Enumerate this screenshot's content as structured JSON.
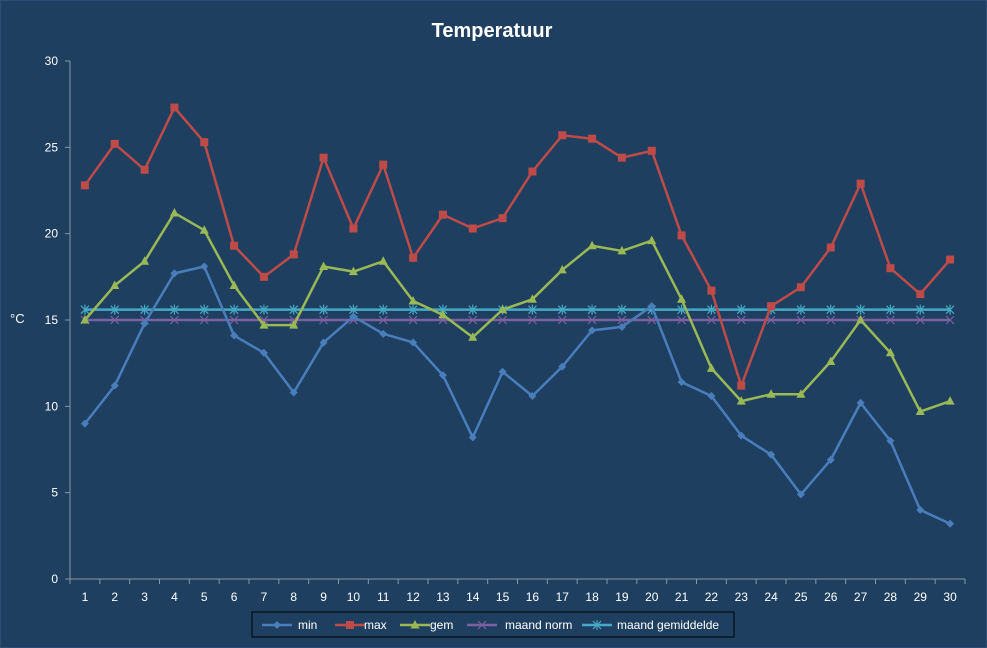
{
  "chart_data": {
    "type": "line",
    "title": "Temperatuur",
    "ylabel": "°C",
    "xlabel": "",
    "ylim": [
      0,
      30
    ],
    "yticks": [
      0,
      5,
      10,
      15,
      20,
      25,
      30
    ],
    "categories": [
      "1",
      "2",
      "3",
      "4",
      "5",
      "6",
      "7",
      "8",
      "9",
      "10",
      "11",
      "12",
      "13",
      "14",
      "15",
      "16",
      "17",
      "18",
      "19",
      "20",
      "21",
      "22",
      "23",
      "24",
      "25",
      "26",
      "27",
      "28",
      "29",
      "30"
    ],
    "grid": false,
    "legend_position": "bottom",
    "series": [
      {
        "name": "min",
        "color": "#4a7ebb",
        "marker": "diamond",
        "values": [
          9.0,
          11.2,
          14.8,
          17.7,
          18.1,
          14.1,
          13.1,
          10.8,
          13.7,
          15.2,
          14.2,
          13.7,
          11.8,
          8.2,
          12.0,
          10.6,
          12.3,
          14.4,
          14.6,
          15.8,
          11.4,
          10.6,
          8.3,
          7.2,
          4.9,
          6.9,
          10.2,
          8.0,
          4.0,
          3.2
        ]
      },
      {
        "name": "max",
        "color": "#be4b48",
        "marker": "square",
        "values": [
          22.8,
          25.2,
          23.7,
          27.3,
          25.3,
          19.3,
          17.5,
          18.8,
          24.4,
          20.3,
          24.0,
          18.6,
          21.1,
          20.3,
          20.9,
          23.6,
          25.7,
          25.5,
          24.4,
          24.8,
          19.9,
          16.7,
          11.2,
          15.8,
          16.9,
          19.2,
          22.9,
          18.0,
          16.5,
          18.5
        ]
      },
      {
        "name": "gem",
        "color": "#98b954",
        "marker": "triangle",
        "values": [
          15.0,
          17.0,
          18.4,
          21.2,
          20.2,
          17.0,
          14.7,
          14.7,
          18.1,
          17.8,
          18.4,
          16.1,
          15.3,
          14.0,
          15.6,
          16.2,
          17.9,
          19.3,
          19.0,
          19.6,
          16.2,
          12.2,
          10.3,
          10.7,
          10.7,
          12.6,
          15.0,
          13.1,
          9.7,
          10.3
        ]
      },
      {
        "name": "maand norm",
        "color": "#7d60a0",
        "marker": "x",
        "values": [
          15.0,
          15.0,
          15.0,
          15.0,
          15.0,
          15.0,
          15.0,
          15.0,
          15.0,
          15.0,
          15.0,
          15.0,
          15.0,
          15.0,
          15.0,
          15.0,
          15.0,
          15.0,
          15.0,
          15.0,
          15.0,
          15.0,
          15.0,
          15.0,
          15.0,
          15.0,
          15.0,
          15.0,
          15.0,
          15.0
        ]
      },
      {
        "name": "maand gemiddelde",
        "color": "#46aac5",
        "marker": "star",
        "values": [
          15.6,
          15.6,
          15.6,
          15.6,
          15.6,
          15.6,
          15.6,
          15.6,
          15.6,
          15.6,
          15.6,
          15.6,
          15.6,
          15.6,
          15.6,
          15.6,
          15.6,
          15.6,
          15.6,
          15.6,
          15.6,
          15.6,
          15.6,
          15.6,
          15.6,
          15.6,
          15.6,
          15.6,
          15.6,
          15.6
        ]
      }
    ]
  }
}
